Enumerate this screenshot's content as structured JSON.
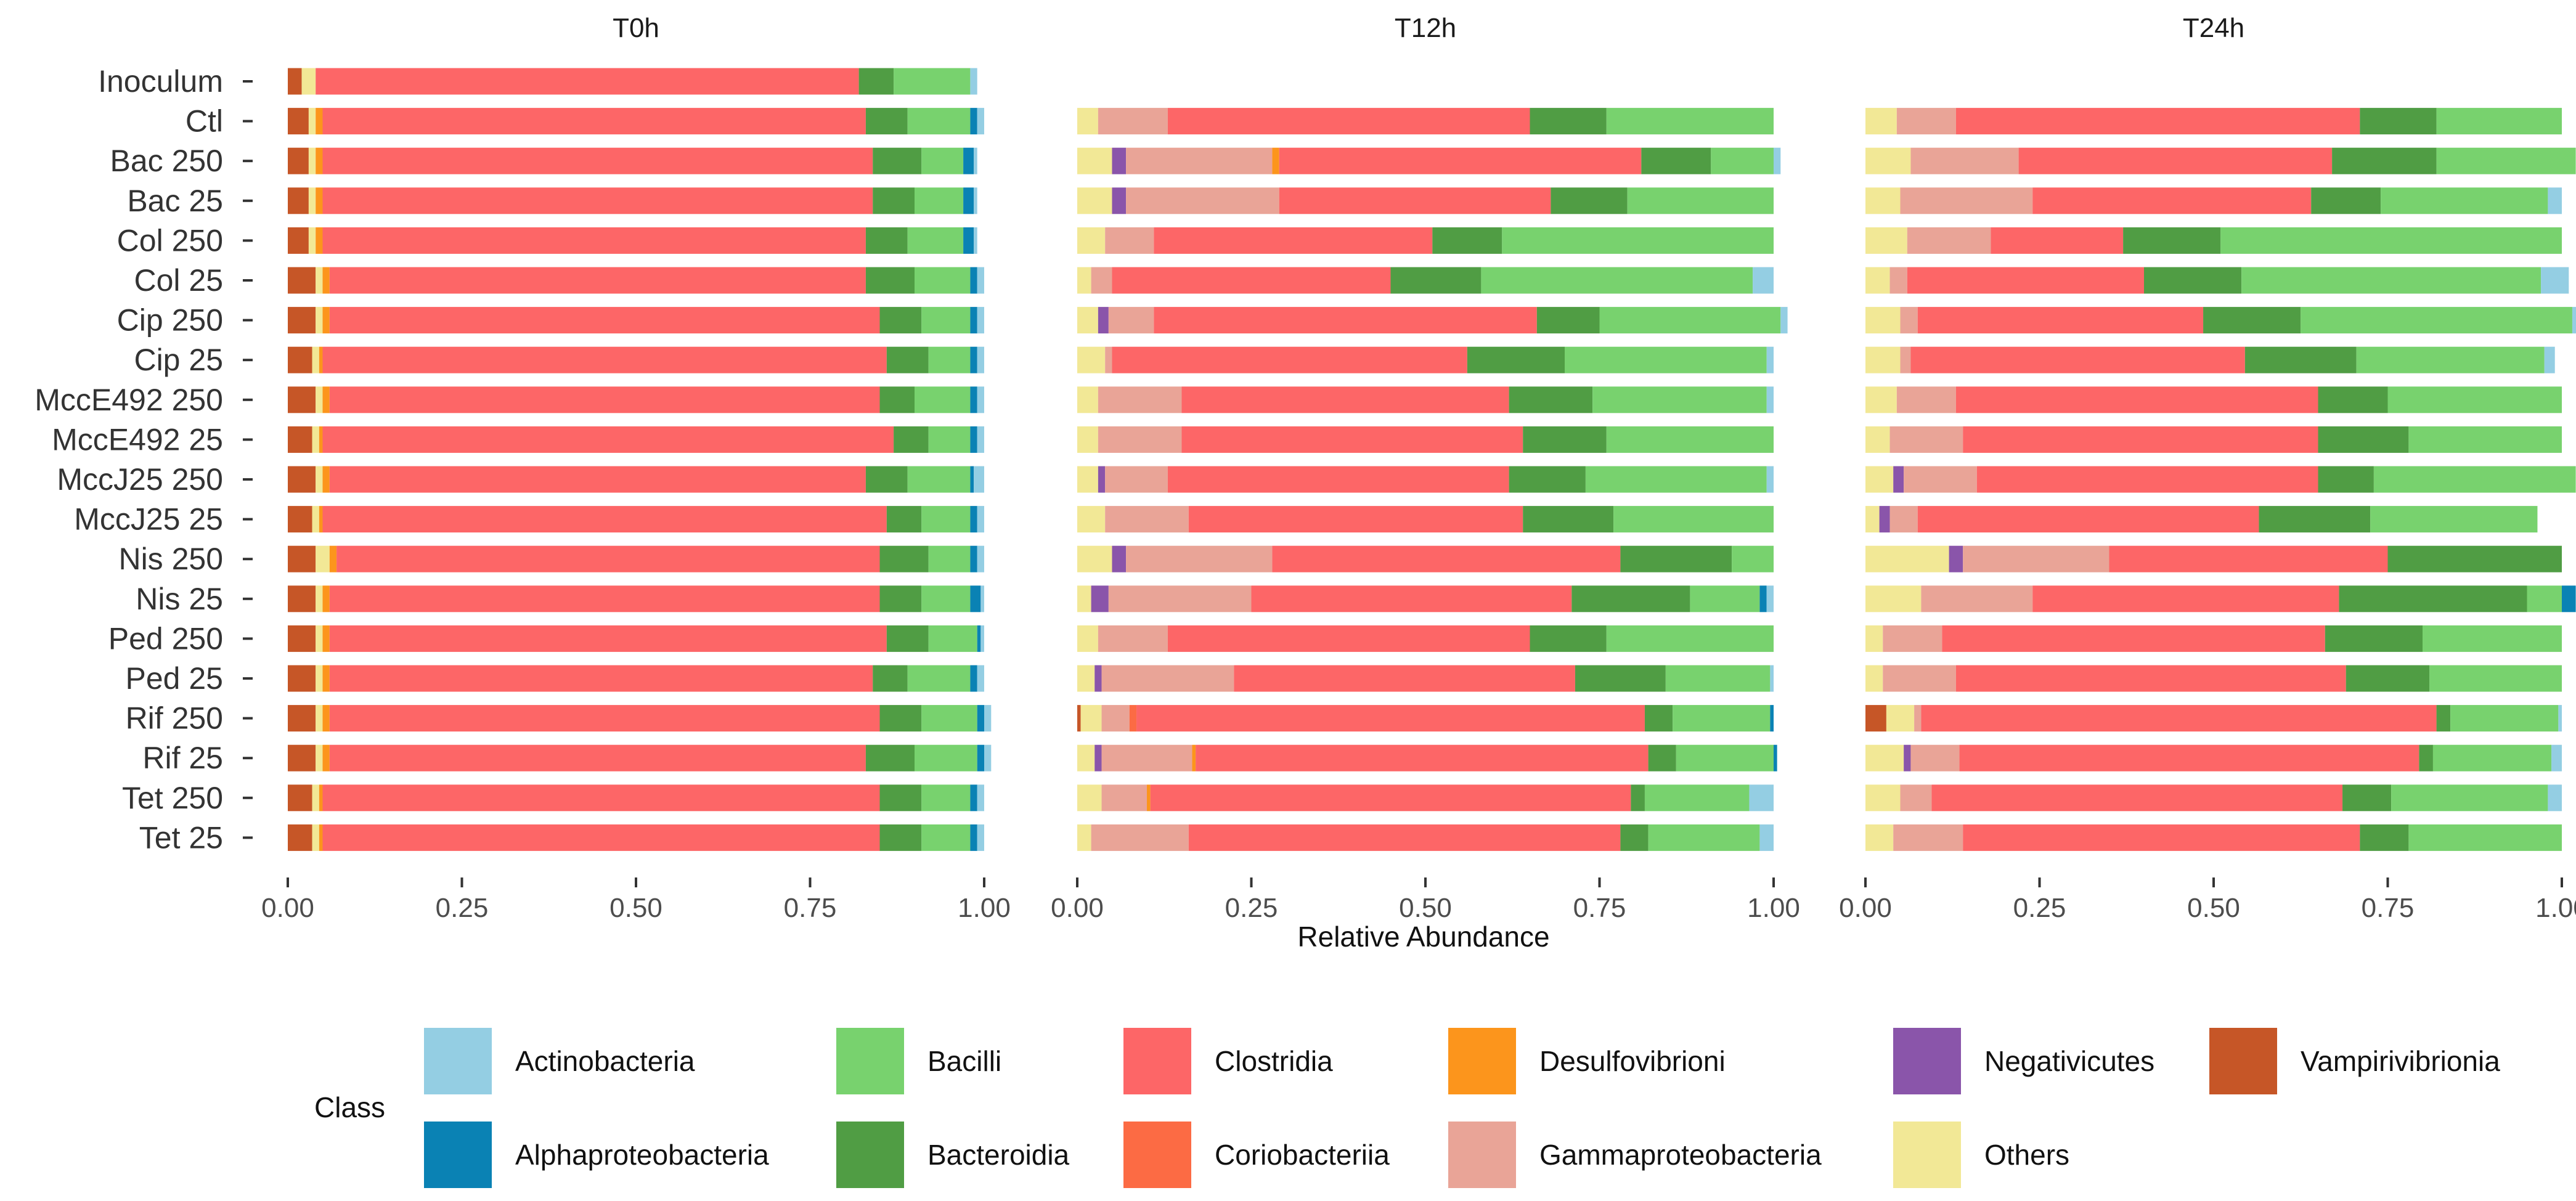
{
  "chart_data": {
    "type": "bar",
    "orientation": "horizontal",
    "stacked": true,
    "panels": [
      "T0h",
      "T12h",
      "T24h"
    ],
    "xlabel": "Relative Abundance",
    "xlim": [
      0,
      1
    ],
    "xticks": [
      "0.00",
      "0.25",
      "0.50",
      "0.75",
      "1.00"
    ],
    "legend_title": "Class",
    "classes": [
      {
        "name": "Actinobacteria",
        "color": "#94CEE3"
      },
      {
        "name": "Alphaproteobacteria",
        "color": "#0A82B4"
      },
      {
        "name": "Bacilli",
        "color": "#78D26E"
      },
      {
        "name": "Bacteroidia",
        "color": "#509D44"
      },
      {
        "name": "Clostridia",
        "color": "#FD6667"
      },
      {
        "name": "Coriobacteriia",
        "color": "#FC6B44"
      },
      {
        "name": "Desulfovibrioni",
        "color": "#FC951C"
      },
      {
        "name": "Gammaproteobacteria",
        "color": "#E9A497"
      },
      {
        "name": "Negativicutes",
        "color": "#8A55AA"
      },
      {
        "name": "Others",
        "color": "#F2E896"
      },
      {
        "name": "Vampirivibrionia",
        "color": "#C65627"
      }
    ],
    "stack_order": [
      "Vampirivibrionia",
      "Others",
      "Negativicutes",
      "Gammaproteobacteria",
      "Desulfovibrioni",
      "Coriobacteriia",
      "Clostridia",
      "Bacteroidia",
      "Bacilli",
      "Alphaproteobacteria",
      "Actinobacteria"
    ],
    "samples": [
      "Inoculum",
      "Ctl",
      "Bac 250",
      "Bac 25",
      "Col 250",
      "Col 25",
      "Cip 250",
      "Cip 25",
      "MccE492 250",
      "MccE492 25",
      "MccJ25 250",
      "MccJ25 25",
      "Nis 250",
      "Nis 25",
      "Ped 250",
      "Ped 25",
      "Rif 250",
      "Rif 25",
      "Tet 250",
      "Tet 25"
    ],
    "panel_rows": [
      [
        0,
        1,
        2,
        3,
        4,
        5,
        6,
        7,
        8,
        9,
        10,
        11,
        12,
        13,
        14,
        15,
        16,
        17,
        18,
        19
      ],
      [
        1,
        2,
        3,
        4,
        5,
        6,
        7,
        8,
        9,
        10,
        11,
        12,
        13,
        14,
        15,
        16,
        17,
        18,
        19
      ],
      [
        1,
        2,
        3,
        4,
        5,
        6,
        7,
        8,
        9,
        10,
        11,
        12,
        13,
        14,
        15,
        16,
        17,
        18,
        19
      ]
    ],
    "series_note": "values[panel][row] follow stack_order, each row sums to ~1",
    "values": [
      [
        [
          0.02,
          0.02,
          0,
          0,
          0,
          0,
          0.78,
          0.05,
          0.11,
          0,
          0.01
        ],
        [
          0.03,
          0.01,
          0,
          0,
          0.01,
          0,
          0.78,
          0.06,
          0.09,
          0.01,
          0.01
        ],
        [
          0.03,
          0.01,
          0,
          0,
          0.01,
          0,
          0.79,
          0.07,
          0.06,
          0.015,
          0.005
        ],
        [
          0.03,
          0.01,
          0,
          0,
          0.01,
          0,
          0.79,
          0.06,
          0.07,
          0.015,
          0.005
        ],
        [
          0.03,
          0.01,
          0,
          0,
          0.01,
          0,
          0.78,
          0.06,
          0.08,
          0.015,
          0.005
        ],
        [
          0.04,
          0.01,
          0,
          0,
          0.01,
          0,
          0.77,
          0.07,
          0.08,
          0.01,
          0.01
        ],
        [
          0.04,
          0.01,
          0,
          0,
          0.01,
          0,
          0.79,
          0.06,
          0.07,
          0.01,
          0.01
        ],
        [
          0.035,
          0.01,
          0,
          0,
          0.005,
          0,
          0.81,
          0.06,
          0.06,
          0.01,
          0.01
        ],
        [
          0.04,
          0.01,
          0,
          0,
          0.01,
          0,
          0.79,
          0.05,
          0.08,
          0.01,
          0.01
        ],
        [
          0.035,
          0.01,
          0,
          0,
          0.005,
          0,
          0.82,
          0.05,
          0.06,
          0.01,
          0.01
        ],
        [
          0.04,
          0.01,
          0,
          0,
          0.01,
          0,
          0.77,
          0.06,
          0.09,
          0.005,
          0.015
        ],
        [
          0.035,
          0.01,
          0,
          0,
          0.005,
          0,
          0.81,
          0.05,
          0.07,
          0.01,
          0.01
        ],
        [
          0.04,
          0.02,
          0,
          0,
          0.01,
          0,
          0.78,
          0.07,
          0.06,
          0.01,
          0.01
        ],
        [
          0.04,
          0.01,
          0,
          0,
          0.01,
          0,
          0.79,
          0.06,
          0.07,
          0.015,
          0.005
        ],
        [
          0.04,
          0.01,
          0,
          0,
          0.01,
          0,
          0.8,
          0.06,
          0.07,
          0.005,
          0.005
        ],
        [
          0.04,
          0.01,
          0,
          0,
          0.01,
          0,
          0.78,
          0.05,
          0.09,
          0.01,
          0.01
        ],
        [
          0.04,
          0.01,
          0,
          0,
          0.01,
          0,
          0.79,
          0.06,
          0.08,
          0.01,
          0.01
        ],
        [
          0.04,
          0.01,
          0,
          0,
          0.01,
          0,
          0.77,
          0.07,
          0.09,
          0.01,
          0.01
        ],
        [
          0.035,
          0.01,
          0,
          0,
          0.005,
          0,
          0.8,
          0.06,
          0.07,
          0.01,
          0.01
        ],
        [
          0.035,
          0.01,
          0,
          0,
          0.005,
          0,
          0.8,
          0.06,
          0.07,
          0.01,
          0.01
        ]
      ],
      [
        [
          0,
          0.03,
          0,
          0.1,
          0,
          0,
          0.52,
          0.11,
          0.24,
          0,
          0
        ],
        [
          0,
          0.05,
          0.02,
          0.21,
          0.01,
          0,
          0.52,
          0.1,
          0.09,
          0,
          0.01
        ],
        [
          0,
          0.05,
          0.02,
          0.22,
          0,
          0,
          0.39,
          0.11,
          0.21,
          0,
          0
        ],
        [
          0,
          0.04,
          0,
          0.07,
          0,
          0,
          0.4,
          0.1,
          0.39,
          0,
          0
        ],
        [
          0,
          0.02,
          0,
          0.03,
          0,
          0,
          0.4,
          0.13,
          0.39,
          0,
          0.03
        ],
        [
          0,
          0.03,
          0.015,
          0.065,
          0,
          0,
          0.55,
          0.09,
          0.26,
          0,
          0.01
        ],
        [
          0,
          0.04,
          0,
          0.01,
          0,
          0,
          0.51,
          0.14,
          0.29,
          0,
          0.01
        ],
        [
          0,
          0.03,
          0,
          0.12,
          0,
          0,
          0.47,
          0.12,
          0.25,
          0,
          0.01
        ],
        [
          0,
          0.03,
          0,
          0.12,
          0,
          0,
          0.49,
          0.12,
          0.24,
          0,
          0
        ],
        [
          0,
          0.03,
          0.01,
          0.09,
          0,
          0,
          0.49,
          0.11,
          0.26,
          0,
          0.01
        ],
        [
          0,
          0.04,
          0,
          0.12,
          0,
          0,
          0.48,
          0.13,
          0.23,
          0,
          0
        ],
        [
          0,
          0.05,
          0.02,
          0.21,
          0,
          0,
          0.5,
          0.16,
          0.06,
          0,
          0
        ],
        [
          0,
          0.02,
          0.025,
          0.205,
          0,
          0,
          0.46,
          0.17,
          0.1,
          0.01,
          0.01
        ],
        [
          0,
          0.03,
          0,
          0.1,
          0,
          0,
          0.52,
          0.11,
          0.24,
          0,
          0
        ],
        [
          0,
          0.025,
          0.01,
          0.19,
          0,
          0,
          0.49,
          0.13,
          0.15,
          0,
          0.005
        ],
        [
          0.005,
          0.03,
          0,
          0.04,
          0,
          0.01,
          0.73,
          0.04,
          0.14,
          0.005,
          0
        ],
        [
          0,
          0.025,
          0.01,
          0.13,
          0.005,
          0,
          0.65,
          0.04,
          0.14,
          0.005,
          0
        ],
        [
          0,
          0.035,
          0,
          0.065,
          0.005,
          0,
          0.69,
          0.02,
          0.15,
          0,
          0.035
        ],
        [
          0,
          0.02,
          0,
          0.14,
          0,
          0,
          0.62,
          0.04,
          0.16,
          0,
          0.02
        ]
      ],
      [
        [
          0,
          0.045,
          0,
          0.085,
          0,
          0,
          0.58,
          0.11,
          0.18,
          0,
          0
        ],
        [
          0,
          0.065,
          0,
          0.155,
          0,
          0,
          0.45,
          0.15,
          0.2,
          0,
          0
        ],
        [
          0,
          0.05,
          0,
          0.19,
          0,
          0,
          0.4,
          0.1,
          0.24,
          0,
          0.02
        ],
        [
          0,
          0.06,
          0,
          0.12,
          0,
          0,
          0.19,
          0.14,
          0.49,
          0,
          0
        ],
        [
          0,
          0.035,
          0,
          0.025,
          0,
          0,
          0.34,
          0.14,
          0.43,
          0,
          0.04
        ],
        [
          0,
          0.05,
          0,
          0.025,
          0,
          0,
          0.41,
          0.14,
          0.39,
          0,
          0.015
        ],
        [
          0,
          0.05,
          0,
          0.015,
          0,
          0,
          0.48,
          0.16,
          0.27,
          0,
          0.015
        ],
        [
          0,
          0.045,
          0,
          0.085,
          0,
          0,
          0.52,
          0.1,
          0.25,
          0,
          0
        ],
        [
          0,
          0.035,
          0,
          0.105,
          0,
          0,
          0.51,
          0.13,
          0.22,
          0,
          0
        ],
        [
          0,
          0.04,
          0.015,
          0.105,
          0,
          0,
          0.49,
          0.08,
          0.29,
          0,
          0
        ],
        [
          0,
          0.02,
          0.015,
          0.04,
          0,
          0,
          0.49,
          0.16,
          0.24,
          0,
          0
        ],
        [
          0,
          0.12,
          0.02,
          0.21,
          0,
          0,
          0.4,
          0.25,
          0,
          0,
          0
        ],
        [
          0,
          0.08,
          0,
          0.16,
          0,
          0,
          0.44,
          0.27,
          0.05,
          0.02,
          0
        ],
        [
          0,
          0.025,
          0,
          0.085,
          0,
          0,
          0.55,
          0.14,
          0.2,
          0,
          0
        ],
        [
          0,
          0.025,
          0,
          0.105,
          0,
          0,
          0.56,
          0.12,
          0.19,
          0,
          0
        ],
        [
          0.03,
          0.04,
          0,
          0.01,
          0,
          0,
          0.74,
          0.02,
          0.155,
          0,
          0.005
        ],
        [
          0,
          0.055,
          0.01,
          0.07,
          0,
          0,
          0.66,
          0.02,
          0.17,
          0,
          0.015
        ],
        [
          0,
          0.05,
          0,
          0.045,
          0,
          0,
          0.59,
          0.07,
          0.225,
          0,
          0.02
        ],
        [
          0,
          0.04,
          0,
          0.1,
          0,
          0,
          0.57,
          0.07,
          0.22,
          0,
          0
        ]
      ]
    ]
  }
}
